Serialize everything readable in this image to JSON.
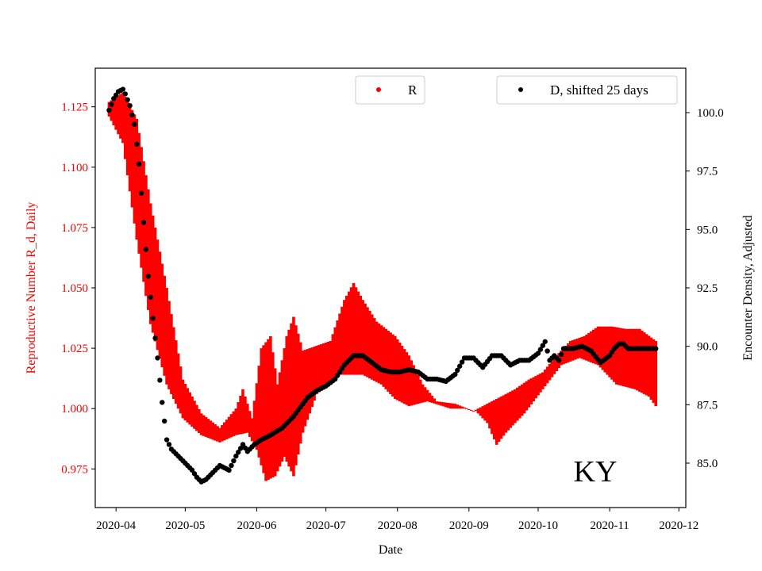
{
  "chart_data": {
    "type": "scatter",
    "state_label": "KY",
    "xlabel": "Date",
    "ylabel_left": "Reproductive Number R_d, Daily",
    "ylabel_right": "Encounter Density, Adjusted",
    "x_range": [
      "2020-03-23",
      "2020-12-04"
    ],
    "x_ticks": [
      "2020-04",
      "2020-05",
      "2020-06",
      "2020-07",
      "2020-08",
      "2020-09",
      "2020-10",
      "2020-11",
      "2020-12"
    ],
    "x_tick_dates": [
      "2020-04-01",
      "2020-05-01",
      "2020-06-01",
      "2020-07-01",
      "2020-08-01",
      "2020-09-01",
      "2020-10-01",
      "2020-11-01",
      "2020-12-01"
    ],
    "y_left_range": [
      0.959,
      1.141
    ],
    "y_left_ticks": [
      "0.975",
      "1.000",
      "1.025",
      "1.050",
      "1.075",
      "1.100",
      "1.125"
    ],
    "y_right_range": [
      83.1,
      101.9
    ],
    "y_right_ticks": [
      "85.0",
      "87.5",
      "90.0",
      "92.5",
      "95.0",
      "97.5",
      "100.0"
    ],
    "colors": {
      "r_series": "#ff0000",
      "d_series": "#000000",
      "left_axis": "#ff0000",
      "right_axis": "#000000"
    },
    "series": [
      {
        "name": "R",
        "axis": "left",
        "color": "#ff0000",
        "kind": "band",
        "x_start": "2020-03-29",
        "step_days": 1,
        "lower_anchors": [
          [
            0,
            1.121
          ],
          [
            6,
            1.11
          ],
          [
            12,
            1.07
          ],
          [
            18,
            1.035
          ],
          [
            25,
            1.01
          ],
          [
            32,
            0.996
          ],
          [
            40,
            0.989
          ],
          [
            48,
            0.986
          ],
          [
            55,
            0.989
          ],
          [
            60,
            0.99
          ],
          [
            64,
            0.983
          ],
          [
            68,
            0.97
          ],
          [
            72,
            0.972
          ],
          [
            76,
            0.98
          ],
          [
            80,
            0.972
          ],
          [
            84,
            0.99
          ],
          [
            90,
            1.006
          ],
          [
            100,
            1.014
          ],
          [
            110,
            1.014
          ],
          [
            118,
            1.01
          ],
          [
            124,
            1.004
          ],
          [
            130,
            1.001
          ],
          [
            138,
            1.003
          ],
          [
            148,
            1.0
          ],
          [
            158,
            1.0
          ],
          [
            164,
            0.994
          ],
          [
            168,
            0.985
          ],
          [
            172,
            0.99
          ],
          [
            180,
            0.998
          ],
          [
            188,
            1.008
          ],
          [
            196,
            1.018
          ],
          [
            204,
            1.021
          ],
          [
            212,
            1.018
          ],
          [
            220,
            1.01
          ],
          [
            228,
            1.008
          ],
          [
            234,
            1.005
          ],
          [
            237,
            1.001
          ]
        ],
        "upper_anchors": [
          [
            0,
            1.127
          ],
          [
            6,
            1.131
          ],
          [
            12,
            1.12
          ],
          [
            18,
            1.085
          ],
          [
            25,
            1.05
          ],
          [
            32,
            1.012
          ],
          [
            40,
            0.998
          ],
          [
            48,
            0.992
          ],
          [
            55,
            1.0
          ],
          [
            58,
            1.008
          ],
          [
            62,
            0.996
          ],
          [
            66,
            1.025
          ],
          [
            70,
            1.03
          ],
          [
            73,
            1.01
          ],
          [
            77,
            1.03
          ],
          [
            80,
            1.038
          ],
          [
            84,
            1.024
          ],
          [
            90,
            1.026
          ],
          [
            96,
            1.028
          ],
          [
            102,
            1.045
          ],
          [
            106,
            1.052
          ],
          [
            110,
            1.045
          ],
          [
            116,
            1.036
          ],
          [
            124,
            1.03
          ],
          [
            130,
            1.022
          ],
          [
            136,
            1.01
          ],
          [
            142,
            1.003
          ],
          [
            150,
            1.002
          ],
          [
            158,
            0.999
          ],
          [
            164,
            1.002
          ],
          [
            170,
            1.005
          ],
          [
            176,
            1.008
          ],
          [
            182,
            1.012
          ],
          [
            188,
            1.015
          ],
          [
            194,
            1.022
          ],
          [
            200,
            1.028
          ],
          [
            206,
            1.03
          ],
          [
            212,
            1.034
          ],
          [
            218,
            1.034
          ],
          [
            224,
            1.033
          ],
          [
            230,
            1.033
          ],
          [
            237,
            1.028
          ]
        ]
      },
      {
        "name": "D, shifted 25 days",
        "axis": "right",
        "color": "#000000",
        "kind": "points",
        "x_start": "2020-03-29",
        "step_days": 1,
        "anchors": [
          [
            0,
            100.1
          ],
          [
            2,
            100.6
          ],
          [
            4,
            100.9
          ],
          [
            6,
            101.0
          ],
          [
            7,
            100.8
          ],
          [
            9,
            100.3
          ],
          [
            11,
            99.5
          ],
          [
            13,
            97.8
          ],
          [
            15,
            95.3
          ],
          [
            17,
            93.0
          ],
          [
            19,
            91.2
          ],
          [
            21,
            89.5
          ],
          [
            23,
            87.6
          ],
          [
            25,
            86.0
          ],
          [
            27,
            85.6
          ],
          [
            30,
            85.3
          ],
          [
            33,
            85.0
          ],
          [
            36,
            84.7
          ],
          [
            38,
            84.4
          ],
          [
            40,
            84.2
          ],
          [
            42,
            84.3
          ],
          [
            45,
            84.6
          ],
          [
            48,
            84.9
          ],
          [
            52,
            84.7
          ],
          [
            55,
            85.3
          ],
          [
            58,
            85.8
          ],
          [
            60,
            85.5
          ],
          [
            63,
            85.8
          ],
          [
            66,
            86.0
          ],
          [
            70,
            86.2
          ],
          [
            75,
            86.5
          ],
          [
            80,
            87.0
          ],
          [
            86,
            87.8
          ],
          [
            90,
            88.1
          ],
          [
            94,
            88.3
          ],
          [
            98,
            88.6
          ],
          [
            102,
            89.2
          ],
          [
            106,
            89.6
          ],
          [
            110,
            89.6
          ],
          [
            114,
            89.3
          ],
          [
            118,
            89.0
          ],
          [
            122,
            88.9
          ],
          [
            126,
            88.9
          ],
          [
            130,
            89.0
          ],
          [
            134,
            88.9
          ],
          [
            138,
            88.6
          ],
          [
            142,
            88.6
          ],
          [
            146,
            88.5
          ],
          [
            150,
            88.8
          ],
          [
            154,
            89.5
          ],
          [
            158,
            89.5
          ],
          [
            162,
            89.1
          ],
          [
            166,
            89.6
          ],
          [
            170,
            89.6
          ],
          [
            174,
            89.2
          ],
          [
            178,
            89.4
          ],
          [
            182,
            89.4
          ],
          [
            186,
            89.7
          ],
          [
            189,
            90.2
          ],
          [
            191,
            89.4
          ],
          [
            193,
            89.6
          ],
          [
            195,
            89.4
          ],
          [
            197,
            89.9
          ],
          [
            201,
            89.9
          ],
          [
            205,
            90.0
          ],
          [
            209,
            89.8
          ],
          [
            213,
            89.3
          ],
          [
            217,
            89.6
          ],
          [
            219,
            89.9
          ],
          [
            221,
            90.1
          ],
          [
            223,
            90.1
          ],
          [
            225,
            89.9
          ],
          [
            237,
            89.9
          ]
        ]
      }
    ],
    "legend": [
      {
        "label": "R",
        "color": "#ff0000",
        "placement": "top-center"
      },
      {
        "label": "D, shifted 25 days",
        "color": "#000000",
        "placement": "top-right"
      }
    ]
  }
}
